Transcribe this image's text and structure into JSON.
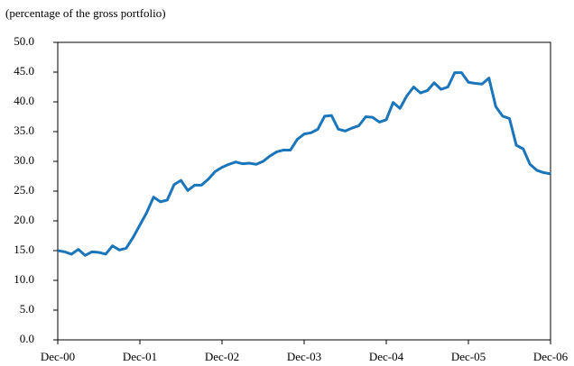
{
  "chart_data": {
    "type": "line",
    "subtitle": "(percentage of the gross portfolio)",
    "categories": [
      "Dec-00",
      null,
      null,
      null,
      null,
      null,
      null,
      null,
      null,
      null,
      null,
      null,
      "Dec-01",
      null,
      null,
      null,
      null,
      null,
      null,
      null,
      null,
      null,
      null,
      null,
      "Dec-02",
      null,
      null,
      null,
      null,
      null,
      null,
      null,
      null,
      null,
      null,
      null,
      "Dec-03",
      null,
      null,
      null,
      null,
      null,
      null,
      null,
      null,
      null,
      null,
      null,
      "Dec-04",
      null,
      null,
      null,
      null,
      null,
      null,
      null,
      null,
      null,
      null,
      null,
      "Dec-05",
      null,
      null,
      null,
      null,
      null,
      null,
      null,
      null,
      null,
      null,
      null,
      "Dec-06"
    ],
    "values": [
      15.0,
      14.8,
      14.4,
      15.2,
      14.2,
      14.8,
      14.7,
      14.4,
      15.8,
      15.1,
      15.4,
      17.2,
      19.3,
      21.4,
      24.0,
      23.2,
      23.5,
      26.1,
      26.8,
      25.1,
      26.0,
      26.0,
      27.0,
      28.3,
      29.0,
      29.5,
      29.9,
      29.6,
      29.7,
      29.5,
      30.0,
      30.9,
      31.6,
      31.9,
      31.9,
      33.7,
      34.6,
      34.8,
      35.4,
      37.6,
      37.7,
      35.4,
      35.1,
      35.6,
      36.0,
      37.5,
      37.4,
      36.6,
      37.0,
      39.9,
      38.9,
      41.0,
      42.5,
      41.5,
      41.9,
      43.2,
      42.1,
      42.5,
      44.9,
      44.9,
      43.3,
      43.1,
      43.0,
      44.0,
      39.2,
      37.6,
      37.2,
      32.7,
      32.1,
      29.5,
      28.5,
      28.1,
      27.9
    ],
    "color": "#1a75bb",
    "ylim": [
      0,
      50
    ],
    "yticks": [
      {
        "value": 0,
        "label": "0.0"
      },
      {
        "value": 5,
        "label": "5.0"
      },
      {
        "value": 10,
        "label": "10.0"
      },
      {
        "value": 15,
        "label": "15.0"
      },
      {
        "value": 20,
        "label": "20.0"
      },
      {
        "value": 25,
        "label": "25.0"
      },
      {
        "value": 30,
        "label": "30.0"
      },
      {
        "value": 35,
        "label": "35.0"
      },
      {
        "value": 40,
        "label": "40.0"
      },
      {
        "value": 45,
        "label": "45.0"
      },
      {
        "value": 50,
        "label": "50.0"
      }
    ],
    "grid": false
  }
}
